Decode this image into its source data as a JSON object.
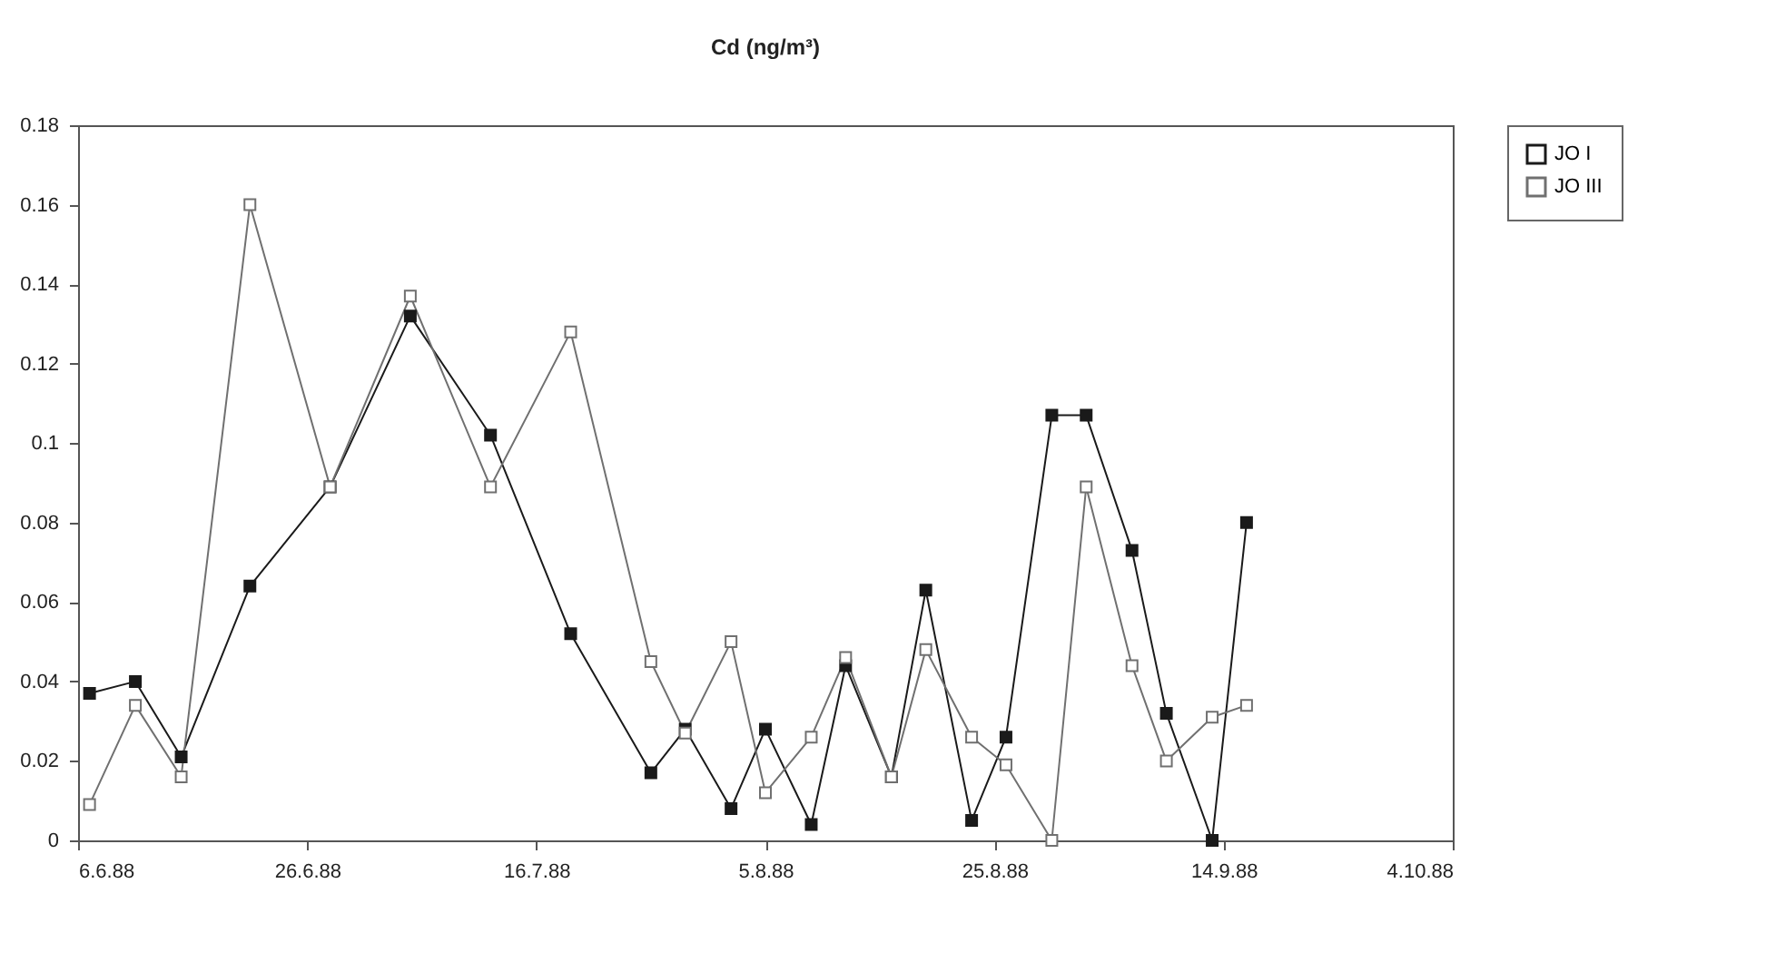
{
  "chart_data": {
    "type": "line",
    "title": "Cd (ng/m³)",
    "x": [
      "1988-06-07",
      "1988-06-11",
      "1988-06-15",
      "1988-06-21",
      "1988-06-28",
      "1988-07-05",
      "1988-07-12",
      "1988-07-19",
      "1988-07-26",
      "1988-07-29",
      "1988-08-02",
      "1988-08-05",
      "1988-08-09",
      "1988-08-12",
      "1988-08-16",
      "1988-08-19",
      "1988-08-23",
      "1988-08-26",
      "1988-08-30",
      "1988-09-02",
      "1988-09-06",
      "1988-09-09",
      "1988-09-13",
      "1988-09-16"
    ],
    "series": [
      {
        "name": "JO I",
        "color": "#1a1a1a",
        "values": [
          0.037,
          0.04,
          0.021,
          0.064,
          0.089,
          0.132,
          0.102,
          0.052,
          0.017,
          0.028,
          0.008,
          0.028,
          0.004,
          0.044,
          0.016,
          0.063,
          0.005,
          0.026,
          0.107,
          0.107,
          0.073,
          0.032,
          0,
          0.08
        ]
      },
      {
        "name": "JO III",
        "color": "#707070",
        "values": [
          0.009,
          0.034,
          0.016,
          0.16,
          0.089,
          0.137,
          0.089,
          0.128,
          0.045,
          0.027,
          0.05,
          0.012,
          0.026,
          0.046,
          0.016,
          0.048,
          0.026,
          0.019,
          0,
          0.089,
          0.044,
          0.02,
          0.031,
          0.034
        ]
      }
    ],
    "xlim": [
      "1988-06-06",
      "1988-10-04"
    ],
    "xticks": [
      {
        "value": "1988-06-06",
        "label": "6.6.88"
      },
      {
        "value": "1988-06-26",
        "label": "26.6.88"
      },
      {
        "value": "1988-07-16",
        "label": "16.7.88"
      },
      {
        "value": "1988-08-05",
        "label": "5.8.88"
      },
      {
        "value": "1988-08-25",
        "label": "25.8.88"
      },
      {
        "value": "1988-09-14",
        "label": "14.9.88"
      },
      {
        "value": "1988-10-04",
        "label": "4.10.88"
      }
    ],
    "ylim": [
      0,
      0.18
    ],
    "yticks": [
      0,
      0.02,
      0.04,
      0.06,
      0.08,
      0.1,
      0.12,
      0.14,
      0.16,
      0.18
    ],
    "grid": false,
    "legend": "right",
    "marker": "square",
    "line_style": "solid"
  }
}
